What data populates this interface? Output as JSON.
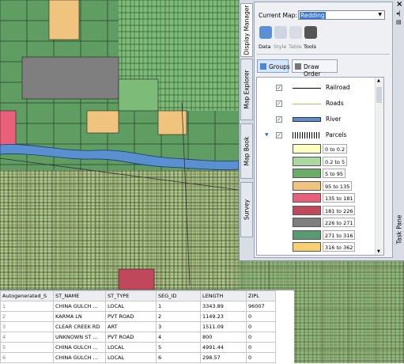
{
  "current_map": {
    "label": "Current Map:",
    "value": "Redding"
  },
  "side_tabs": [
    "Display Manager",
    "Map Explorer",
    "Map Book",
    "Survey"
  ],
  "toolbar": [
    "Data",
    "Style",
    "Table",
    "Tools"
  ],
  "buttons": [
    "Groups",
    "Draw Order"
  ],
  "layers": [
    "Railroad",
    "Roads",
    "River",
    "Parcels"
  ],
  "legend": [
    {
      "label": "0 to 0.2",
      "color": "#ffffc0"
    },
    {
      "label": "0.2 to 5",
      "color": "#a9d9a0"
    },
    {
      "label": "5 to 95",
      "color": "#6cac68"
    },
    {
      "label": "95 to 135",
      "color": "#f0c47e"
    },
    {
      "label": "135 to 181",
      "color": "#e8607a"
    },
    {
      "label": "181 to 226",
      "color": "#c0485a"
    },
    {
      "label": "226 to 271",
      "color": "#7f7f7f"
    },
    {
      "label": "271 to 316",
      "color": "#5a9a72"
    },
    {
      "label": "316 to 362",
      "color": "#f8d070"
    }
  ],
  "task_pane": "Task Pane",
  "table": {
    "headers": [
      "Autogenerated_S",
      "ST_NAME",
      "ST_TYPE",
      "SEG_ID",
      "LENGTH",
      "ZIPL"
    ],
    "rows": [
      [
        "1",
        "CHINA GULCH ...",
        "LOCAL",
        "1",
        "3343.89",
        "96007"
      ],
      [
        "2",
        "KARMA LN",
        "PVT ROAD",
        "2",
        "1149.23",
        "0"
      ],
      [
        "3",
        "CLEAR CREEK RD",
        "ART",
        "3",
        "1511.09",
        "0"
      ],
      [
        "4",
        "UNKNOWN ST ...",
        "PVT ROAD",
        "4",
        "800",
        "0"
      ],
      [
        "5",
        "CHINA GULCH ...",
        "LOCAL",
        "5",
        "4991.44",
        "0"
      ],
      [
        "6",
        "CHINA GULCH ...",
        "LOCAL",
        "6",
        "298.57",
        "0"
      ]
    ]
  }
}
